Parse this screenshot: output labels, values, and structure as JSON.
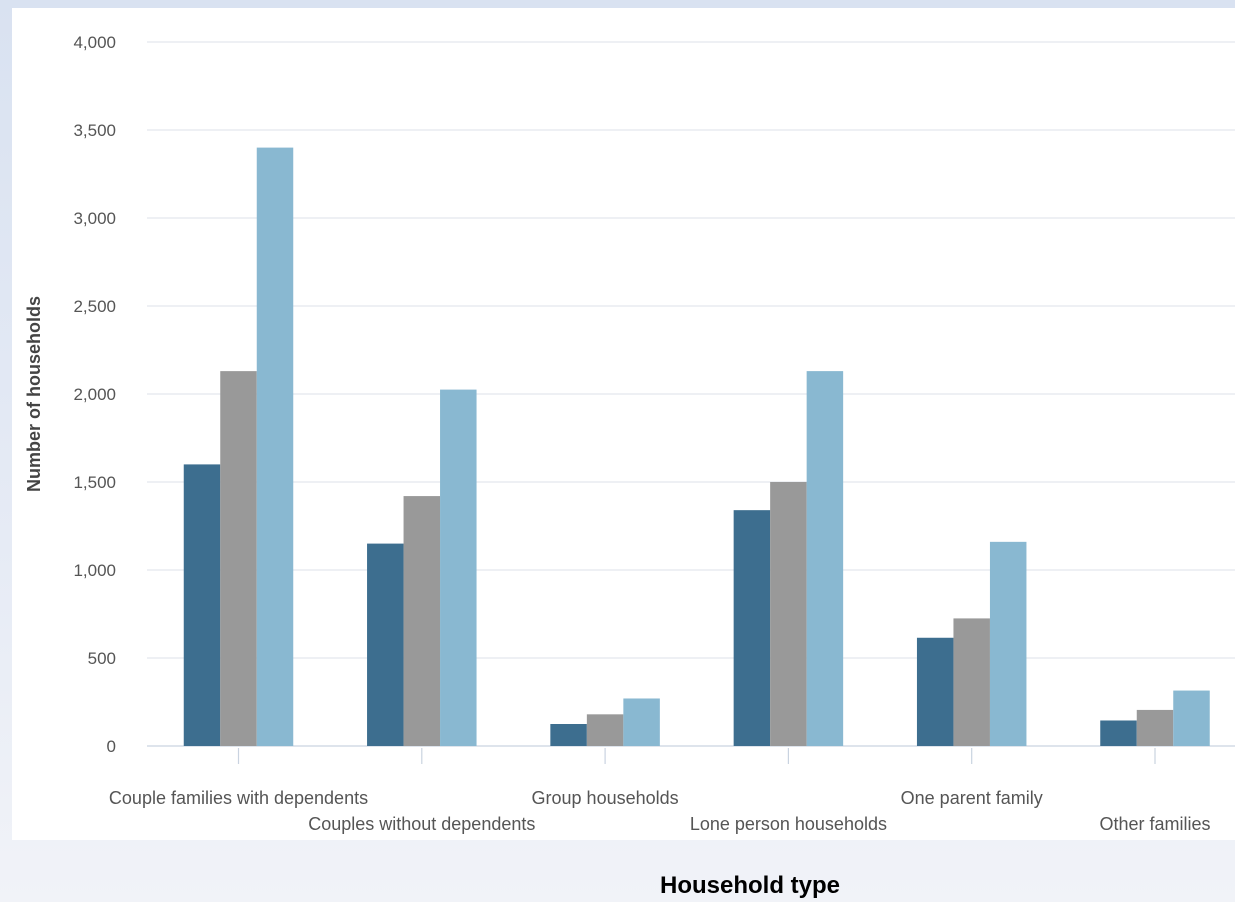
{
  "chart_data": {
    "type": "bar",
    "categories": [
      "Couple families with dependents",
      "Couples without dependents",
      "Group households",
      "Lone person households",
      "One parent family",
      "Other families"
    ],
    "series": [
      {
        "values": [
          1600,
          1150,
          125,
          1340,
          615,
          145
        ],
        "color": "#3d6e8f"
      },
      {
        "values": [
          2130,
          1420,
          180,
          1500,
          725,
          205
        ],
        "color": "#999999"
      },
      {
        "values": [
          3400,
          2025,
          270,
          2130,
          1160,
          315
        ],
        "color": "#89b8d1"
      }
    ],
    "yticks": [
      "0",
      "500",
      "1,000",
      "1,500",
      "2,000",
      "2,500",
      "3,000",
      "3,500",
      "4,000"
    ],
    "ylim": [
      0,
      4000
    ],
    "ylabel": "Number of households",
    "xlabel": "Household type",
    "grid": true
  }
}
